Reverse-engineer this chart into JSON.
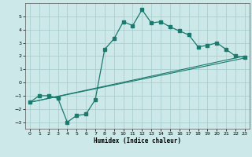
{
  "xlabel": "Humidex (Indice chaleur)",
  "background_color": "#cce8e8",
  "grid_color": "#aacece",
  "line_color": "#1a7a6e",
  "line1_x": [
    0,
    1,
    2,
    3,
    4,
    5,
    6,
    7,
    8,
    9,
    10,
    11,
    12,
    13,
    14,
    15,
    16,
    17,
    18,
    19,
    20,
    21,
    22,
    23
  ],
  "line1_y": [
    -1.5,
    -1.0,
    -1.0,
    -1.2,
    -3.0,
    -2.5,
    -2.4,
    -1.3,
    2.5,
    3.3,
    4.6,
    4.3,
    5.5,
    4.5,
    4.6,
    4.2,
    3.9,
    3.6,
    2.7,
    2.8,
    3.0,
    2.5,
    2.0,
    1.9
  ],
  "line2_x": [
    0,
    23
  ],
  "line2_y": [
    -1.5,
    2.0
  ],
  "line3_x": [
    0,
    23
  ],
  "line3_y": [
    -1.5,
    1.85
  ],
  "ylim": [
    -3.5,
    6.0
  ],
  "xlim": [
    -0.5,
    23.5
  ],
  "yticks": [
    -3,
    -2,
    -1,
    0,
    1,
    2,
    3,
    4,
    5
  ],
  "xticks": [
    0,
    1,
    2,
    3,
    4,
    5,
    6,
    7,
    8,
    9,
    10,
    11,
    12,
    13,
    14,
    15,
    16,
    17,
    18,
    19,
    20,
    21,
    22,
    23
  ]
}
